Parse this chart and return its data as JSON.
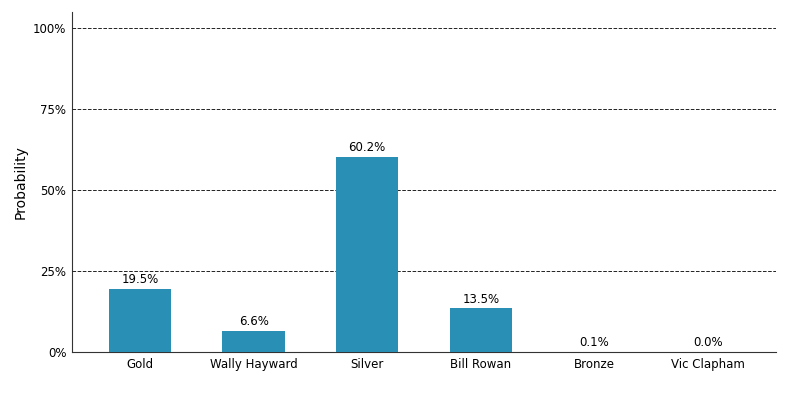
{
  "categories": [
    "Gold",
    "Wally Hayward",
    "Silver",
    "Bill Rowan",
    "Bronze",
    "Vic Clapham"
  ],
  "values": [
    19.5,
    6.6,
    60.2,
    13.5,
    0.1,
    0.0
  ],
  "bar_color": "#2a8fb5",
  "ylabel": "Probability",
  "ylim": [
    0,
    105
  ],
  "yticks": [
    0,
    25,
    50,
    75,
    100
  ],
  "ytick_labels": [
    "0%",
    "25%",
    "50%",
    "75%",
    "100%"
  ],
  "grid_color": "#222222",
  "background_color": "#ffffff",
  "bar_width": 0.55,
  "label_fontsize": 8.5,
  "tick_fontsize": 8.5,
  "ylabel_fontsize": 10,
  "figsize": [
    8.0,
    4.0
  ],
  "dpi": 100
}
